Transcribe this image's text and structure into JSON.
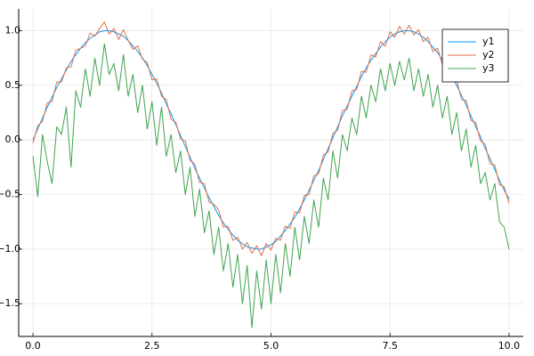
{
  "chart_data": {
    "type": "line",
    "x": [
      0,
      0.1,
      0.2,
      0.3,
      0.4,
      0.5,
      0.6,
      0.7,
      0.8,
      0.9,
      1,
      1.1,
      1.2,
      1.3,
      1.4,
      1.5,
      1.6,
      1.7,
      1.8,
      1.9,
      2,
      2.1,
      2.2,
      2.3,
      2.4,
      2.5,
      2.6,
      2.7,
      2.8,
      2.9,
      3,
      3.1,
      3.2,
      3.3,
      3.4,
      3.5,
      3.6,
      3.7,
      3.8,
      3.9,
      4,
      4.1,
      4.2,
      4.3,
      4.4,
      4.5,
      4.6,
      4.7,
      4.8,
      4.9,
      5,
      5.1,
      5.2,
      5.3,
      5.4,
      5.5,
      5.6,
      5.7,
      5.8,
      5.9,
      6,
      6.1,
      6.2,
      6.3,
      6.4,
      6.5,
      6.6,
      6.7,
      6.8,
      6.9,
      7,
      7.1,
      7.2,
      7.3,
      7.4,
      7.5,
      7.6,
      7.7,
      7.8,
      7.9,
      8,
      8.1,
      8.2,
      8.3,
      8.4,
      8.5,
      8.6,
      8.7,
      8.8,
      8.9,
      9,
      9.1,
      9.2,
      9.3,
      9.4,
      9.5,
      9.6,
      9.7,
      9.8,
      9.9,
      10
    ],
    "series": [
      {
        "name": "y1",
        "color": "#009af9",
        "values": [
          0,
          0.1,
          0.2,
          0.3,
          0.39,
          0.48,
          0.56,
          0.64,
          0.72,
          0.78,
          0.84,
          0.89,
          0.93,
          0.96,
          0.99,
          1,
          1,
          0.99,
          0.97,
          0.95,
          0.91,
          0.86,
          0.81,
          0.75,
          0.68,
          0.6,
          0.52,
          0.43,
          0.33,
          0.24,
          0.14,
          0.04,
          -0.06,
          -0.16,
          -0.26,
          -0.35,
          -0.44,
          -0.53,
          -0.61,
          -0.69,
          -0.76,
          -0.82,
          -0.87,
          -0.92,
          -0.95,
          -0.98,
          -0.99,
          -1,
          -1,
          -0.98,
          -0.96,
          -0.93,
          -0.88,
          -0.83,
          -0.77,
          -0.71,
          -0.63,
          -0.55,
          -0.46,
          -0.37,
          -0.28,
          -0.18,
          -0.08,
          0.02,
          0.12,
          0.22,
          0.31,
          0.4,
          0.49,
          0.58,
          0.66,
          0.73,
          0.79,
          0.85,
          0.9,
          0.94,
          0.97,
          0.99,
          1,
          1,
          0.99,
          0.97,
          0.94,
          0.9,
          0.85,
          0.8,
          0.73,
          0.66,
          0.58,
          0.5,
          0.41,
          0.32,
          0.22,
          0.12,
          0.03,
          -0.08,
          -0.17,
          -0.27,
          -0.37,
          -0.46,
          -0.54
        ]
      },
      {
        "name": "y2",
        "color": "#e26f46",
        "values": [
          -0.03,
          0.13,
          0.17,
          0.34,
          0.35,
          0.53,
          0.53,
          0.66,
          0.67,
          0.82,
          0.84,
          0.86,
          0.98,
          0.95,
          1.02,
          1.08,
          0.97,
          1.02,
          0.92,
          1.01,
          0.91,
          0.83,
          0.86,
          0.74,
          0.71,
          0.55,
          0.56,
          0.4,
          0.37,
          0.19,
          0.16,
          0.01,
          -0.01,
          -0.19,
          -0.22,
          -0.39,
          -0.4,
          -0.57,
          -0.59,
          -0.64,
          -0.8,
          -0.79,
          -0.92,
          -0.89,
          -1,
          -0.94,
          -1.04,
          -0.97,
          -1.06,
          -0.95,
          -1.01,
          -0.9,
          -0.92,
          -0.79,
          -0.81,
          -0.66,
          -0.67,
          -0.51,
          -0.5,
          -0.33,
          -0.31,
          -0.14,
          -0.11,
          0.06,
          0.09,
          0.27,
          0.28,
          0.45,
          0.46,
          0.63,
          0.62,
          0.78,
          0.76,
          0.9,
          0.86,
          0.99,
          0.94,
          1.04,
          0.97,
          1.05,
          0.96,
          1.01,
          0.9,
          0.94,
          0.81,
          0.84,
          0.69,
          0.7,
          0.54,
          0.55,
          0.37,
          0.36,
          0.18,
          0.16,
          -0.01,
          -0.04,
          -0.22,
          -0.23,
          -0.41,
          -0.43,
          -0.58
        ]
      },
      {
        "name": "y3",
        "color": "#3ea44e",
        "values": [
          -0.15,
          -0.52,
          0.05,
          -0.2,
          -0.4,
          0.12,
          0.05,
          0.3,
          -0.25,
          0.45,
          0.3,
          0.65,
          0.4,
          0.75,
          0.5,
          0.88,
          0.6,
          0.7,
          0.45,
          0.78,
          0.4,
          0.6,
          0.25,
          0.5,
          0.1,
          0.35,
          -0.05,
          0.3,
          -0.15,
          0.05,
          -0.3,
          -0.1,
          -0.5,
          -0.25,
          -0.7,
          -0.45,
          -0.85,
          -0.65,
          -1.05,
          -0.8,
          -1.2,
          -0.95,
          -1.35,
          -1.05,
          -1.5,
          -1.15,
          -1.72,
          -1.2,
          -1.55,
          -1.1,
          -1.5,
          -1.05,
          -1.4,
          -0.95,
          -1.25,
          -0.8,
          -1.1,
          -0.7,
          -0.95,
          -0.55,
          -0.8,
          -0.35,
          -0.55,
          -0.1,
          -0.35,
          0.05,
          -0.1,
          0.2,
          0.05,
          0.4,
          0.2,
          0.5,
          0.35,
          0.65,
          0.45,
          0.7,
          0.5,
          0.72,
          0.55,
          0.75,
          0.45,
          0.65,
          0.4,
          0.6,
          0.3,
          0.5,
          0.2,
          0.4,
          0.05,
          0.25,
          -0.1,
          0.1,
          -0.25,
          -0.05,
          -0.4,
          -0.3,
          -0.55,
          -0.4,
          -0.75,
          -0.8,
          -1
        ]
      }
    ],
    "xlim": [
      -0.3,
      10.3
    ],
    "ylim": [
      -1.8,
      1.2
    ],
    "xticks": [
      {
        "value": 0,
        "label": "0.0"
      },
      2.5,
      {
        "value": 5,
        "label": "5.0"
      },
      7.5,
      {
        "value": 10,
        "label": "10.0"
      }
    ],
    "yticks": [
      {
        "value": -1.5,
        "label": "−1.5"
      },
      {
        "value": -1,
        "label": "−1.0"
      },
      {
        "value": -0.5,
        "label": "−0.5"
      },
      {
        "value": 0,
        "label": "0.0"
      },
      0.5,
      {
        "value": 1,
        "label": "1.0"
      }
    ],
    "grid": true,
    "legend": "top-right"
  }
}
